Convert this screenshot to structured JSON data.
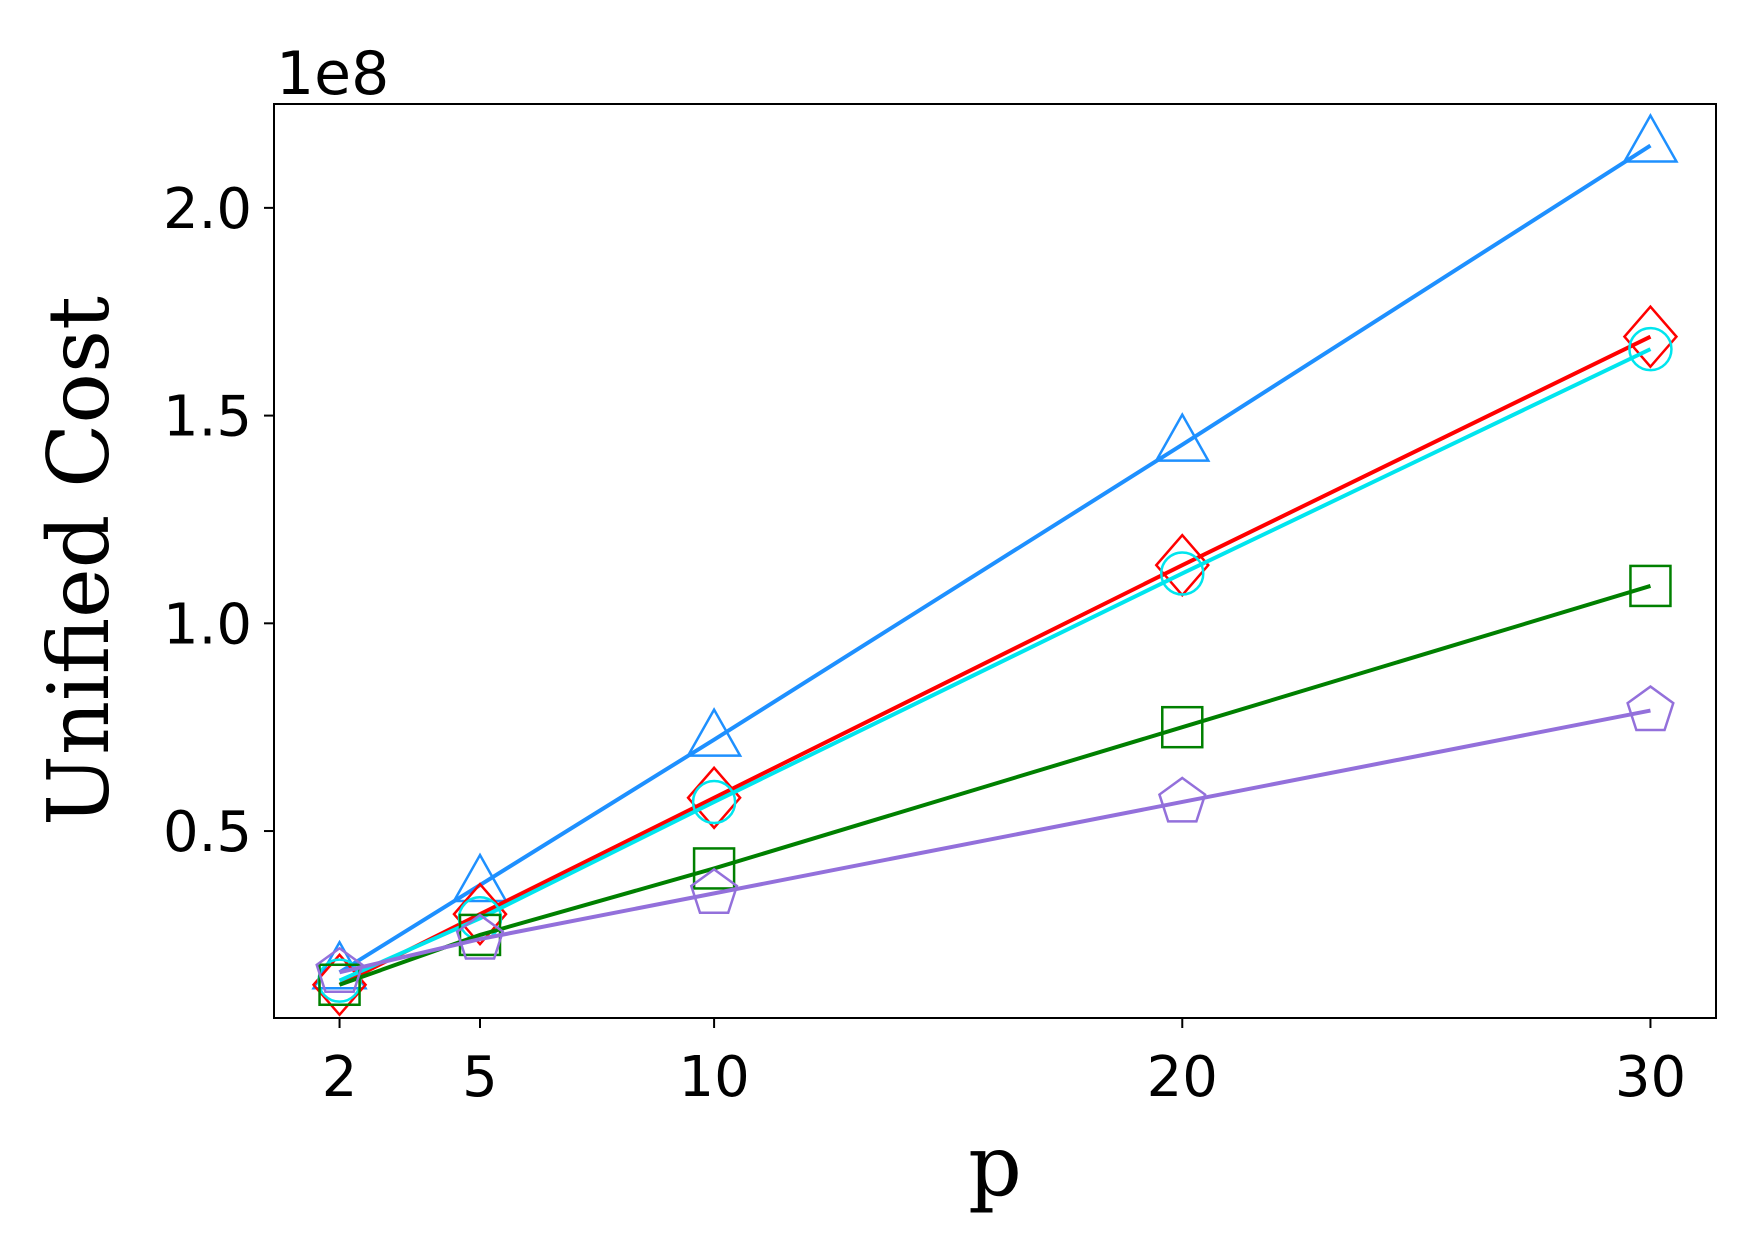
{
  "chart_data": {
    "type": "line",
    "title": "",
    "xlabel": "p",
    "ylabel": "Unified Cost",
    "y_offset_label": "1e8",
    "x": [
      2,
      5,
      10,
      20,
      30
    ],
    "xticks": [
      "2",
      "5",
      "10",
      "20",
      "30"
    ],
    "yticks": [
      {
        "value": 0.5,
        "label": "0.5"
      },
      {
        "value": 1.0,
        "label": "1.0"
      },
      {
        "value": 1.5,
        "label": "1.5"
      },
      {
        "value": 2.0,
        "label": "2.0"
      }
    ],
    "xlim": [
      0.6,
      31.4
    ],
    "ylim": [
      0.05,
      2.25
    ],
    "grid": false,
    "series": [
      {
        "color": "#1e90ff",
        "marker": "triangle",
        "values": [
          0.16,
          0.37,
          0.72,
          1.43,
          2.15
        ]
      },
      {
        "color": "#ff0000",
        "marker": "diamond",
        "values": [
          0.13,
          0.3,
          0.58,
          1.14,
          1.69
        ]
      },
      {
        "color": "#00e5ee",
        "marker": "circle",
        "values": [
          0.14,
          0.29,
          0.57,
          1.12,
          1.66
        ]
      },
      {
        "color": "#008000",
        "marker": "square",
        "values": [
          0.13,
          0.25,
          0.41,
          0.75,
          1.09
        ]
      },
      {
        "color": "#9370db",
        "marker": "pentagon",
        "values": [
          0.16,
          0.24,
          0.35,
          0.57,
          0.79
        ]
      }
    ]
  }
}
